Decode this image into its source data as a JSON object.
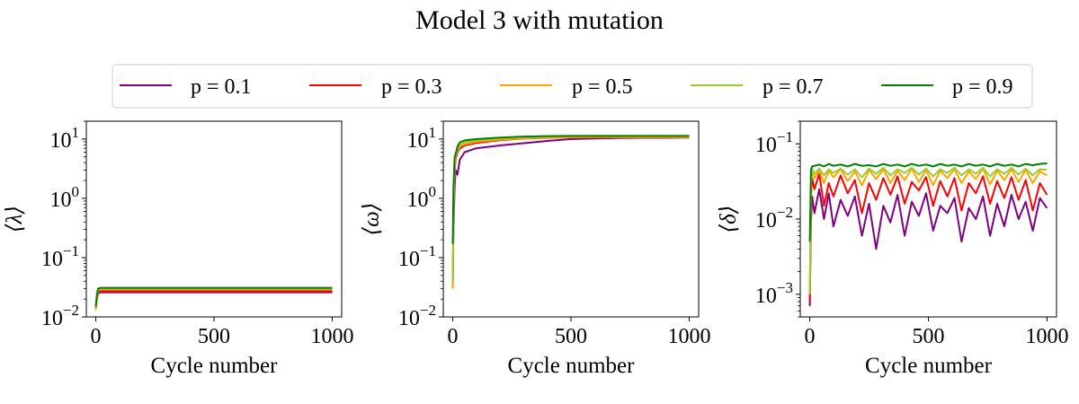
{
  "figure": {
    "title": "Model 3 with mutation"
  },
  "legend": {
    "placement": "top-center",
    "entries": [
      {
        "label": "p = 0.1",
        "color": "#800080"
      },
      {
        "label": "p = 0.3",
        "color": "#ff0000"
      },
      {
        "label": "p = 0.5",
        "color": "#ffa500"
      },
      {
        "label": "p = 0.7",
        "color": "#9acd32"
      },
      {
        "label": "p = 0.9",
        "color": "#008000"
      }
    ]
  },
  "chart_data": [
    {
      "type": "line",
      "title": "",
      "xlabel": "Cycle number",
      "ylabel": "⟨λ⟩",
      "yscale": "log",
      "xlim": [
        -40,
        1040
      ],
      "ylim": [
        0.01,
        20
      ],
      "xticks": [
        0,
        500,
        1000
      ],
      "yticks": [
        {
          "value": 0.01,
          "base": "10",
          "exp": "−2"
        },
        {
          "value": 0.1,
          "base": "10",
          "exp": "−1"
        },
        {
          "value": 1,
          "base": "10",
          "exp": "0"
        },
        {
          "value": 10,
          "base": "10",
          "exp": "1"
        }
      ],
      "grid": false,
      "series": [
        {
          "name": "p = 0.1",
          "x": [
            0,
            5,
            10,
            20,
            50,
            100,
            200,
            300,
            400,
            500,
            600,
            700,
            800,
            900,
            1000
          ],
          "y": [
            0.014,
            0.02,
            0.025,
            0.026,
            0.026,
            0.026,
            0.026,
            0.026,
            0.026,
            0.026,
            0.026,
            0.026,
            0.026,
            0.026,
            0.026
          ]
        },
        {
          "name": "p = 0.3",
          "x": [
            0,
            5,
            10,
            20,
            50,
            100,
            200,
            300,
            400,
            500,
            600,
            700,
            800,
            900,
            1000
          ],
          "y": [
            0.014,
            0.021,
            0.026,
            0.027,
            0.027,
            0.027,
            0.027,
            0.027,
            0.027,
            0.027,
            0.027,
            0.027,
            0.027,
            0.027,
            0.027
          ]
        },
        {
          "name": "p = 0.5",
          "x": [
            0,
            5,
            10,
            20,
            50,
            100,
            200,
            300,
            400,
            500,
            600,
            700,
            800,
            900,
            1000
          ],
          "y": [
            0.013,
            0.022,
            0.028,
            0.029,
            0.029,
            0.029,
            0.029,
            0.029,
            0.029,
            0.029,
            0.029,
            0.029,
            0.029,
            0.029,
            0.029
          ]
        },
        {
          "name": "p = 0.7",
          "x": [
            0,
            5,
            10,
            20,
            50,
            100,
            200,
            300,
            400,
            500,
            600,
            700,
            800,
            900,
            1000
          ],
          "y": [
            0.013,
            0.023,
            0.029,
            0.03,
            0.03,
            0.03,
            0.03,
            0.03,
            0.03,
            0.03,
            0.03,
            0.03,
            0.03,
            0.03,
            0.03
          ]
        },
        {
          "name": "p = 0.9",
          "x": [
            0,
            5,
            10,
            20,
            50,
            100,
            200,
            300,
            400,
            500,
            600,
            700,
            800,
            900,
            1000
          ],
          "y": [
            0.015,
            0.024,
            0.03,
            0.031,
            0.031,
            0.031,
            0.031,
            0.031,
            0.031,
            0.031,
            0.031,
            0.031,
            0.031,
            0.031,
            0.031
          ]
        }
      ]
    },
    {
      "type": "line",
      "title": "",
      "xlabel": "Cycle number",
      "ylabel": "⟨ω⟩",
      "yscale": "log",
      "xlim": [
        -40,
        1040
      ],
      "ylim": [
        0.01,
        20
      ],
      "xticks": [
        0,
        500,
        1000
      ],
      "yticks": [
        {
          "value": 0.01,
          "base": "10",
          "exp": "−2"
        },
        {
          "value": 0.1,
          "base": "10",
          "exp": "−1"
        },
        {
          "value": 1,
          "base": "10",
          "exp": "0"
        },
        {
          "value": 10,
          "base": "10",
          "exp": "1"
        }
      ],
      "grid": false,
      "series": [
        {
          "name": "p = 0.1",
          "x": [
            0,
            3,
            8,
            12,
            20,
            30,
            50,
            100,
            200,
            300,
            400,
            500,
            600,
            700,
            800,
            900,
            1000
          ],
          "y": [
            0.03,
            0.3,
            1.5,
            3.0,
            2.5,
            4.5,
            6.0,
            7.0,
            7.8,
            8.5,
            9.3,
            10.0,
            10.2,
            10.4,
            10.5,
            10.5,
            10.6
          ]
        },
        {
          "name": "p = 0.3",
          "x": [
            0,
            3,
            8,
            12,
            20,
            30,
            50,
            100,
            200,
            300,
            400,
            500,
            600,
            700,
            800,
            900,
            1000
          ],
          "y": [
            0.03,
            0.5,
            3.0,
            4.5,
            6.0,
            7.0,
            7.8,
            8.6,
            9.6,
            10.2,
            10.5,
            10.7,
            10.8,
            10.8,
            10.8,
            10.8,
            10.8
          ]
        },
        {
          "name": "p = 0.5",
          "x": [
            0,
            3,
            8,
            12,
            20,
            30,
            50,
            100,
            200,
            300,
            400,
            500,
            600,
            700,
            800,
            900,
            1000
          ],
          "y": [
            0.03,
            0.6,
            3.5,
            5.0,
            6.5,
            7.5,
            8.2,
            9.0,
            9.8,
            10.3,
            10.6,
            10.7,
            10.8,
            10.8,
            10.8,
            10.8,
            10.8
          ]
        },
        {
          "name": "p = 0.7",
          "x": [
            0,
            3,
            8,
            12,
            20,
            30,
            50,
            100,
            200,
            300,
            400,
            500,
            600,
            700,
            800,
            900,
            1000
          ],
          "y": [
            0.04,
            0.8,
            4.0,
            5.5,
            7.0,
            8.0,
            8.8,
            9.6,
            10.3,
            10.8,
            11.0,
            11.2,
            11.3,
            11.3,
            11.3,
            11.3,
            11.3
          ]
        },
        {
          "name": "p = 0.9",
          "x": [
            0,
            3,
            8,
            12,
            20,
            30,
            50,
            100,
            200,
            300,
            400,
            500,
            600,
            700,
            800,
            900,
            1000
          ],
          "y": [
            0.17,
            1.5,
            5.0,
            5.5,
            7.5,
            8.8,
            9.5,
            10.0,
            10.6,
            11.0,
            11.2,
            11.3,
            11.3,
            11.3,
            11.3,
            11.3,
            11.3
          ]
        }
      ]
    },
    {
      "type": "line",
      "title": "",
      "xlabel": "Cycle number",
      "ylabel": "⟨δ⟩",
      "yscale": "log",
      "xlim": [
        -40,
        1040
      ],
      "ylim": [
        0.0005,
        0.2
      ],
      "xticks": [
        0,
        500,
        1000
      ],
      "yticks": [
        {
          "value": 0.001,
          "base": "10",
          "exp": "−3"
        },
        {
          "value": 0.01,
          "base": "10",
          "exp": "−2"
        },
        {
          "value": 0.1,
          "base": "10",
          "exp": "−1"
        }
      ],
      "grid": false,
      "series": [
        {
          "name": "p = 0.1",
          "x": [
            0,
            5,
            10,
            20,
            40,
            60,
            80,
            100,
            130,
            160,
            190,
            220,
            250,
            280,
            310,
            340,
            370,
            400,
            430,
            460,
            490,
            520,
            550,
            580,
            610,
            640,
            670,
            700,
            730,
            760,
            790,
            820,
            850,
            880,
            910,
            940,
            970,
            1000
          ],
          "y": [
            0.0007,
            0.009,
            0.02,
            0.012,
            0.025,
            0.01,
            0.022,
            0.008,
            0.018,
            0.011,
            0.02,
            0.006,
            0.016,
            0.004,
            0.015,
            0.009,
            0.021,
            0.006,
            0.017,
            0.011,
            0.022,
            0.007,
            0.015,
            0.012,
            0.019,
            0.005,
            0.014,
            0.01,
            0.02,
            0.006,
            0.016,
            0.008,
            0.021,
            0.01,
            0.017,
            0.007,
            0.019,
            0.014
          ]
        },
        {
          "name": "p = 0.3",
          "x": [
            0,
            5,
            10,
            20,
            40,
            60,
            80,
            100,
            130,
            160,
            190,
            220,
            250,
            280,
            310,
            340,
            370,
            400,
            430,
            460,
            490,
            520,
            550,
            580,
            610,
            640,
            670,
            700,
            730,
            760,
            790,
            820,
            850,
            880,
            910,
            940,
            970,
            1000
          ],
          "y": [
            0.0008,
            0.02,
            0.035,
            0.025,
            0.04,
            0.015,
            0.03,
            0.02,
            0.038,
            0.022,
            0.033,
            0.012,
            0.03,
            0.018,
            0.035,
            0.021,
            0.037,
            0.016,
            0.031,
            0.024,
            0.036,
            0.015,
            0.032,
            0.02,
            0.035,
            0.013,
            0.03,
            0.022,
            0.037,
            0.016,
            0.032,
            0.019,
            0.036,
            0.018,
            0.033,
            0.013,
            0.03,
            0.021
          ]
        },
        {
          "name": "p = 0.5",
          "x": [
            0,
            5,
            10,
            20,
            40,
            60,
            80,
            100,
            130,
            160,
            190,
            220,
            250,
            280,
            310,
            340,
            370,
            400,
            430,
            460,
            490,
            520,
            550,
            580,
            610,
            640,
            670,
            700,
            730,
            760,
            790,
            820,
            850,
            880,
            910,
            940,
            970,
            1000
          ],
          "y": [
            0.001,
            0.03,
            0.042,
            0.035,
            0.045,
            0.03,
            0.044,
            0.036,
            0.046,
            0.032,
            0.043,
            0.028,
            0.045,
            0.034,
            0.046,
            0.03,
            0.044,
            0.033,
            0.047,
            0.031,
            0.045,
            0.028,
            0.044,
            0.035,
            0.046,
            0.03,
            0.043,
            0.034,
            0.047,
            0.029,
            0.044,
            0.033,
            0.046,
            0.031,
            0.045,
            0.03,
            0.043,
            0.038
          ]
        },
        {
          "name": "p = 0.7",
          "x": [
            0,
            5,
            10,
            20,
            40,
            60,
            80,
            100,
            130,
            160,
            190,
            220,
            250,
            280,
            310,
            340,
            370,
            400,
            430,
            460,
            490,
            520,
            550,
            580,
            610,
            640,
            670,
            700,
            730,
            760,
            790,
            820,
            850,
            880,
            910,
            940,
            970,
            1000
          ],
          "y": [
            0.001,
            0.035,
            0.046,
            0.04,
            0.047,
            0.038,
            0.046,
            0.041,
            0.047,
            0.039,
            0.046,
            0.036,
            0.047,
            0.04,
            0.048,
            0.038,
            0.046,
            0.041,
            0.048,
            0.039,
            0.047,
            0.037,
            0.046,
            0.041,
            0.048,
            0.038,
            0.046,
            0.04,
            0.048,
            0.037,
            0.046,
            0.04,
            0.048,
            0.039,
            0.047,
            0.038,
            0.046,
            0.045
          ]
        },
        {
          "name": "p = 0.9",
          "x": [
            0,
            5,
            10,
            20,
            40,
            60,
            80,
            100,
            130,
            160,
            190,
            220,
            250,
            280,
            310,
            340,
            370,
            400,
            430,
            460,
            490,
            520,
            550,
            580,
            610,
            640,
            670,
            700,
            730,
            760,
            790,
            820,
            850,
            880,
            910,
            940,
            970,
            1000
          ],
          "y": [
            0.005,
            0.045,
            0.05,
            0.051,
            0.053,
            0.05,
            0.054,
            0.051,
            0.053,
            0.05,
            0.054,
            0.051,
            0.052,
            0.05,
            0.054,
            0.051,
            0.053,
            0.05,
            0.054,
            0.051,
            0.053,
            0.05,
            0.054,
            0.051,
            0.053,
            0.05,
            0.054,
            0.051,
            0.053,
            0.05,
            0.054,
            0.051,
            0.053,
            0.05,
            0.054,
            0.052,
            0.054,
            0.055
          ]
        }
      ]
    }
  ]
}
